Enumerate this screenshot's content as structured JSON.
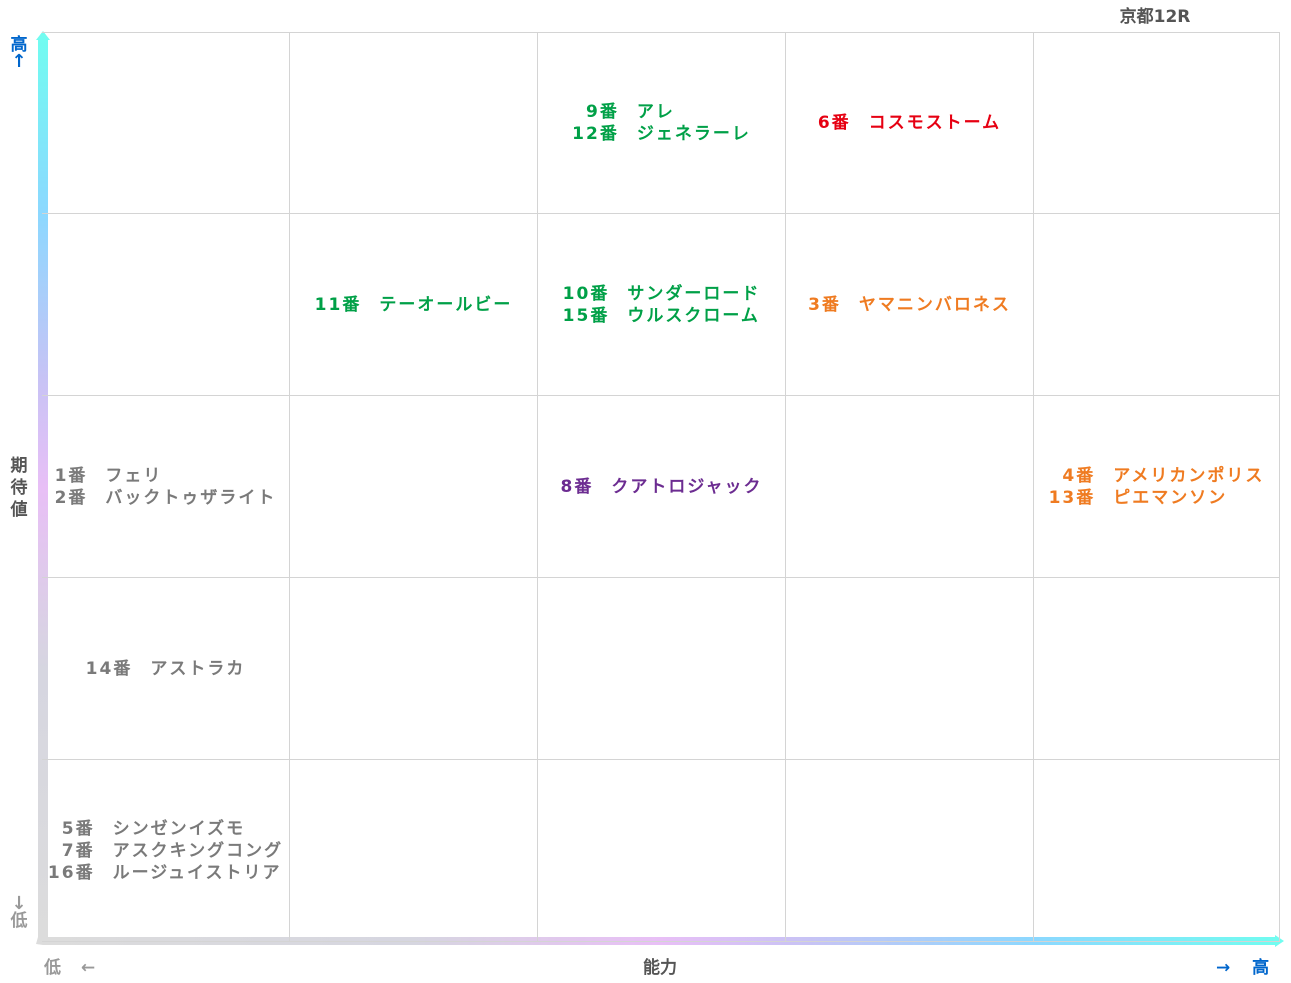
{
  "race_title": "京都12R",
  "chart_data": {
    "type": "table",
    "title": "京都12R",
    "xlabel": "能力",
    "ylabel": "期待値",
    "x_low_label": "低",
    "x_high_label": "高",
    "y_low_label": "低",
    "y_high_label": "高",
    "x_arrow_left": "←",
    "x_arrow_right": "→",
    "y_arrow_up": "↑",
    "y_arrow_down": "↓",
    "columns": 5,
    "rows": 5,
    "grid": true,
    "colors": {
      "green": "#00a047",
      "red": "#e60012",
      "orange": "#ef7b21",
      "purple": "#6c2c91",
      "gray": "#7a7a7a",
      "axis_high": "#0066cc",
      "axis_low": "#999999",
      "gradient": [
        "#dcdcdc",
        "#d6d6e0",
        "#e8bff6",
        "#c7c3f5",
        "#8cd8ff",
        "#70fdf0"
      ]
    },
    "cells": [
      {
        "row": 1,
        "col": 3,
        "color": "#00a047",
        "entries": [
          {
            "num": "9番",
            "name": "アレ"
          },
          {
            "num": "12番",
            "name": "ジェネラーレ"
          }
        ]
      },
      {
        "row": 1,
        "col": 4,
        "color": "#e60012",
        "entries": [
          {
            "num": "6番",
            "name": "コスモストーム"
          }
        ]
      },
      {
        "row": 2,
        "col": 2,
        "color": "#00a047",
        "entries": [
          {
            "num": "11番",
            "name": "テーオールビー"
          }
        ]
      },
      {
        "row": 2,
        "col": 3,
        "color": "#00a047",
        "entries": [
          {
            "num": "10番",
            "name": "サンダーロード"
          },
          {
            "num": "15番",
            "name": "ウルスクローム"
          }
        ]
      },
      {
        "row": 2,
        "col": 4,
        "color": "#ef7b21",
        "entries": [
          {
            "num": "3番",
            "name": "ヤマニンバロネス"
          }
        ]
      },
      {
        "row": 3,
        "col": 1,
        "color": "#7a7a7a",
        "entries": [
          {
            "num": "1番",
            "name": "フェリ"
          },
          {
            "num": "2番",
            "name": "バックトゥザライト"
          }
        ]
      },
      {
        "row": 3,
        "col": 3,
        "color": "#6c2c91",
        "entries": [
          {
            "num": "8番",
            "name": "クアトロジャック"
          }
        ]
      },
      {
        "row": 3,
        "col": 5,
        "color": "#ef7b21",
        "entries": [
          {
            "num": "4番",
            "name": "アメリカンポリス"
          },
          {
            "num": "13番",
            "name": "ピエマンソン"
          }
        ]
      },
      {
        "row": 4,
        "col": 1,
        "color": "#7a7a7a",
        "entries": [
          {
            "num": "14番",
            "name": "アストラカ"
          }
        ]
      },
      {
        "row": 5,
        "col": 1,
        "color": "#7a7a7a",
        "entries": [
          {
            "num": "5番",
            "name": "シンゼンイズモ"
          },
          {
            "num": "7番",
            "name": "アスクキングコング"
          },
          {
            "num": "16番",
            "name": "ルージュイストリア"
          }
        ]
      }
    ]
  }
}
